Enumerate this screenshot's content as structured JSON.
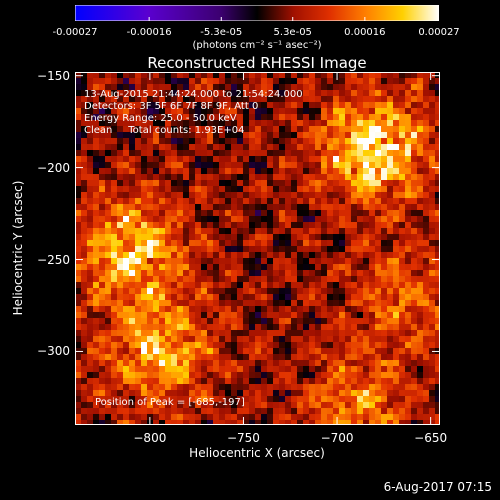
{
  "chart_data": {
    "type": "heatmap",
    "title": "Reconstructed RHESSI Image",
    "xlabel": "Heliocentric X (arcsec)",
    "ylabel": "Heliocentric Y (arcsec)",
    "xlim": [
      -840,
      -645
    ],
    "ylim": [
      -340,
      -148
    ],
    "xticks": [
      -800,
      -750,
      -700,
      -650
    ],
    "yticks": [
      -150,
      -200,
      -250,
      -300
    ],
    "colorbar": {
      "ticks": [
        "-0.00027",
        "-0.00016",
        "-5.3e-05",
        "5.3e-05",
        "0.00016",
        "0.00027"
      ],
      "tick_values": [
        -0.00027,
        -0.00016,
        -5.3e-05,
        5.3e-05,
        0.00016,
        0.00027
      ],
      "range": [
        -0.00027,
        0.00027
      ],
      "unit": "(photons cm⁻² s⁻¹ asec⁻²)"
    },
    "annotations": {
      "time": "13-Aug-2015 21:44:24.000 to 21:54:24.000",
      "detectors": "Detectors: 3F 5F 6F 7F 8F 9F, Att 0",
      "energy": "Energy Range: 25.0 - 50.0 keV",
      "method": "Clean     Total counts: 1.93E+04",
      "peak": "Position of Peak = [-685,-197]"
    },
    "bright_regions": [
      {
        "x": -680,
        "y": -190,
        "value": 0.00027
      },
      {
        "x": -810,
        "y": -245,
        "value": 0.00022
      },
      {
        "x": -795,
        "y": -300,
        "value": 0.0002
      },
      {
        "x": -690,
        "y": -330,
        "value": 0.00015
      },
      {
        "x": -665,
        "y": -270,
        "value": 0.00012
      }
    ],
    "grid": false,
    "colormap": [
      "#0000ff",
      "#5a00d0",
      "#3c0070",
      "#000000",
      "#a01000",
      "#e03000",
      "#ff8000",
      "#ffd000",
      "#ffffff"
    ]
  },
  "timestamp": "6-Aug-2017 07:15"
}
